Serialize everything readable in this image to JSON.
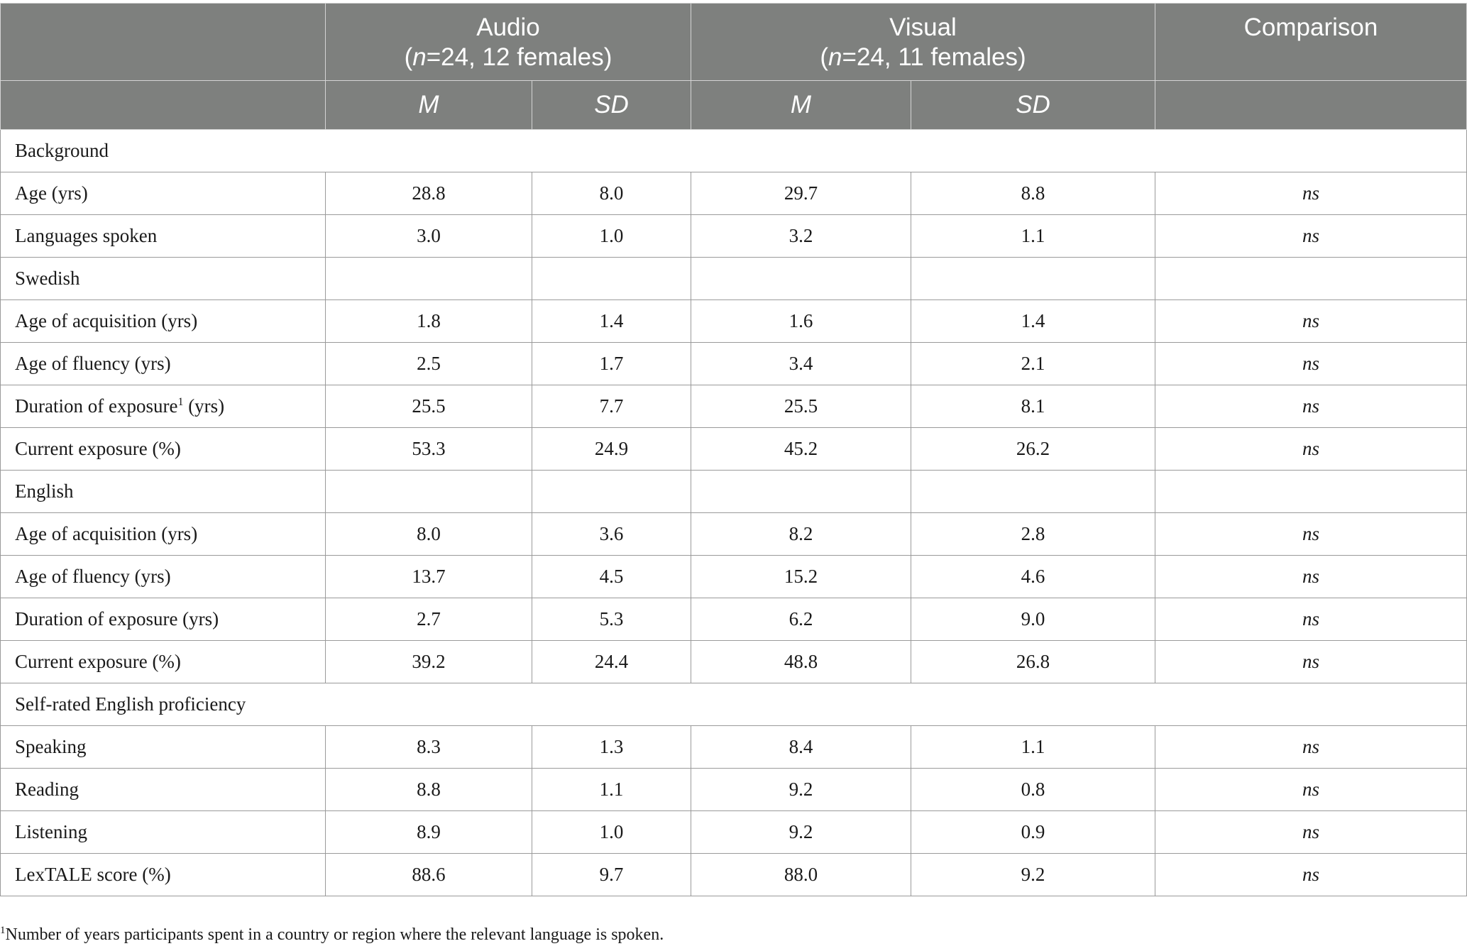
{
  "header": {
    "audio": {
      "title": "Audio",
      "n_prefix": "(",
      "n_italic": "n",
      "n_rest": "=24, 12 females)"
    },
    "visual": {
      "title": "Visual",
      "n_prefix": "(",
      "n_italic": "n",
      "n_rest": "=24, 11 females)"
    },
    "comparison": "Comparison",
    "sub": {
      "m1": "M",
      "sd1": "SD",
      "m2": "M",
      "sd2": "SD"
    }
  },
  "rows": [
    {
      "label": "Background",
      "section": true,
      "full": true
    },
    {
      "label": "Age (yrs)",
      "audio_m": "28.8",
      "audio_sd": "8.0",
      "visual_m": "29.7",
      "visual_sd": "8.8",
      "comparison": "ns"
    },
    {
      "label": "Languages spoken",
      "audio_m": "3.0",
      "audio_sd": "1.0",
      "visual_m": "3.2",
      "visual_sd": "1.1",
      "comparison": "ns"
    },
    {
      "label": "Swedish",
      "section": true
    },
    {
      "label": "Age of acquisition (yrs)",
      "audio_m": "1.8",
      "audio_sd": "1.4",
      "visual_m": "1.6",
      "visual_sd": "1.4",
      "comparison": "ns"
    },
    {
      "label": "Age of fluency (yrs)",
      "audio_m": "2.5",
      "audio_sd": "1.7",
      "visual_m": "3.4",
      "visual_sd": "2.1",
      "comparison": "ns"
    },
    {
      "label": "Duration of exposure",
      "label_sup": "1",
      "label_after": " (yrs)",
      "audio_m": "25.5",
      "audio_sd": "7.7",
      "visual_m": "25.5",
      "visual_sd": "8.1",
      "comparison": "ns"
    },
    {
      "label": "Current exposure (%)",
      "audio_m": "53.3",
      "audio_sd": "24.9",
      "visual_m": "45.2",
      "visual_sd": "26.2",
      "comparison": "ns"
    },
    {
      "label": "English",
      "section": true
    },
    {
      "label": "Age of acquisition (yrs)",
      "audio_m": "8.0",
      "audio_sd": "3.6",
      "visual_m": "8.2",
      "visual_sd": "2.8",
      "comparison": "ns"
    },
    {
      "label": "Age of fluency (yrs)",
      "audio_m": "13.7",
      "audio_sd": "4.5",
      "visual_m": "15.2",
      "visual_sd": "4.6",
      "comparison": "ns"
    },
    {
      "label": "Duration of exposure (yrs)",
      "audio_m": "2.7",
      "audio_sd": "5.3",
      "visual_m": "6.2",
      "visual_sd": "9.0",
      "comparison": "ns"
    },
    {
      "label": "Current exposure (%)",
      "audio_m": "39.2",
      "audio_sd": "24.4",
      "visual_m": "48.8",
      "visual_sd": "26.8",
      "comparison": "ns"
    },
    {
      "label": "Self-rated English proficiency",
      "section": true,
      "full": true
    },
    {
      "label": "Speaking",
      "audio_m": "8.3",
      "audio_sd": "1.3",
      "visual_m": "8.4",
      "visual_sd": "1.1",
      "comparison": "ns"
    },
    {
      "label": "Reading",
      "audio_m": "8.8",
      "audio_sd": "1.1",
      "visual_m": "9.2",
      "visual_sd": "0.8",
      "comparison": "ns"
    },
    {
      "label": "Listening",
      "audio_m": "8.9",
      "audio_sd": "1.0",
      "visual_m": "9.2",
      "visual_sd": "0.9",
      "comparison": "ns"
    },
    {
      "label": "LexTALE score (%)",
      "audio_m": "88.6",
      "audio_sd": "9.7",
      "visual_m": "88.0",
      "visual_sd": "9.2",
      "comparison": "ns"
    }
  ],
  "footnote": {
    "sup": "1",
    "text": "Number of years participants spent in a country or region where the relevant language is spoken."
  }
}
